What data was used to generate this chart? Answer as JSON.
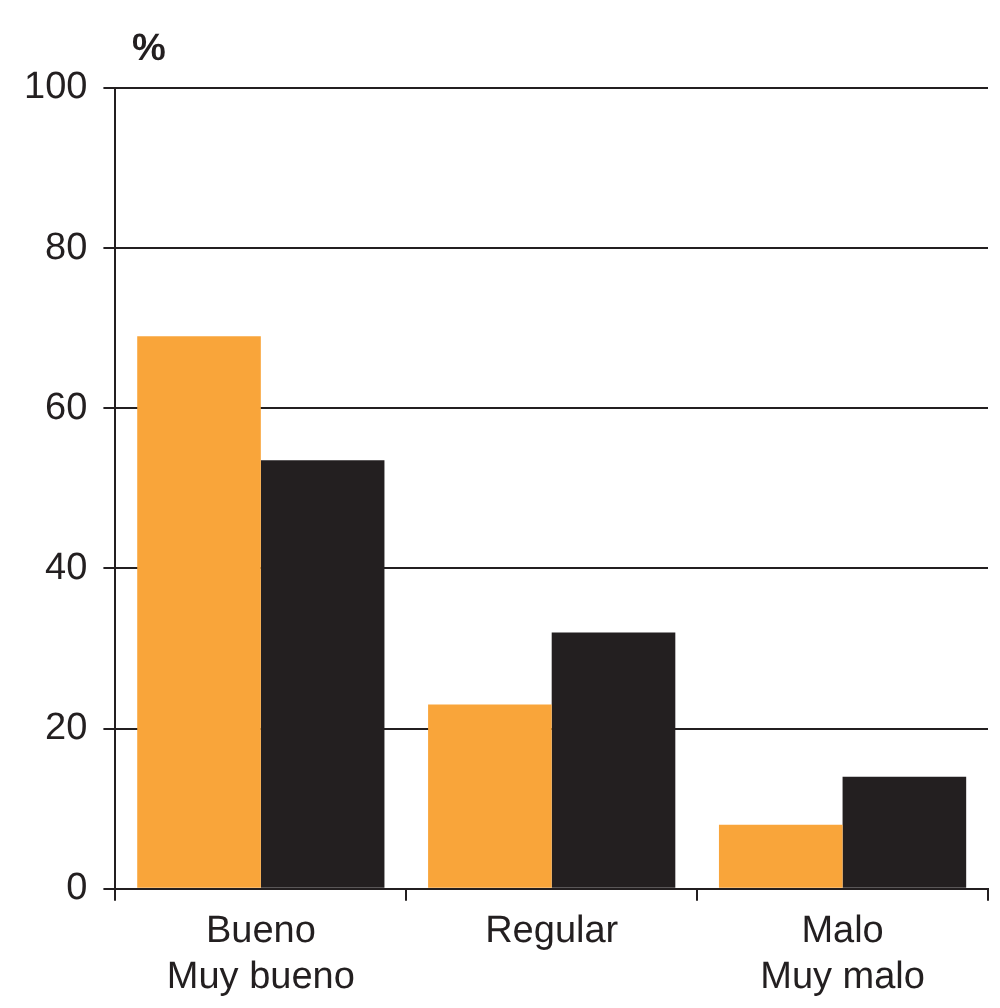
{
  "chart_data": {
    "type": "bar",
    "ylabel": "%",
    "categories": [
      "Bueno\nMuy bueno",
      "Regular",
      "Malo\nMuy malo"
    ],
    "series": [
      {
        "color": "#f9a53a",
        "values": [
          69,
          23,
          8
        ]
      },
      {
        "color": "#231f20",
        "values": [
          53.5,
          32,
          14
        ]
      }
    ],
    "ylim": [
      0,
      100
    ],
    "yticks": [
      0,
      20,
      40,
      60,
      80,
      100
    ],
    "grid": "y",
    "legend": false
  }
}
